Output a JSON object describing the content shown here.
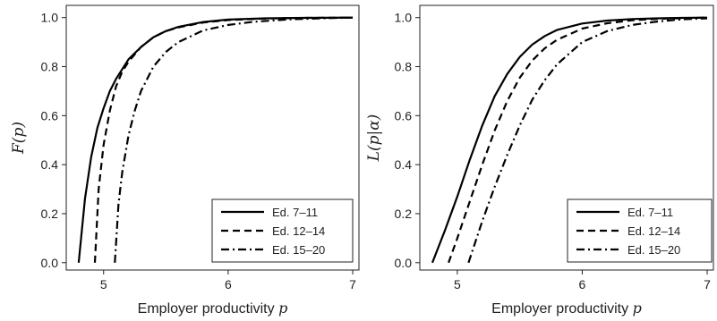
{
  "chart_data": [
    {
      "type": "line",
      "ylabel": "F(p)",
      "xlabel_text": "Employer productivity ",
      "xlabel_var": "p",
      "xlim": [
        4.7,
        7.05
      ],
      "ylim": [
        -0.03,
        1.05
      ],
      "xticks": [
        5,
        6,
        7
      ],
      "yticks": [
        0.0,
        0.2,
        0.4,
        0.6,
        0.8,
        1.0
      ],
      "xtick_labels": [
        "5",
        "6",
        "7"
      ],
      "ytick_labels": [
        "0.0",
        "0.2",
        "0.4",
        "0.6",
        "0.8",
        "1.0"
      ],
      "legend_position": "bottom-right",
      "series": [
        {
          "name": "Ed. 7–11",
          "style": "solid",
          "x": [
            4.8,
            4.85,
            4.9,
            4.95,
            5.0,
            5.05,
            5.1,
            5.2,
            5.3,
            5.4,
            5.5,
            5.6,
            5.8,
            6.0,
            6.3,
            6.6,
            7.0
          ],
          "y": [
            0.0,
            0.26,
            0.43,
            0.55,
            0.63,
            0.7,
            0.75,
            0.83,
            0.88,
            0.92,
            0.945,
            0.962,
            0.982,
            0.992,
            0.997,
            0.999,
            1.0
          ]
        },
        {
          "name": "Ed. 12–14",
          "style": "dashed",
          "x": [
            4.93,
            4.96,
            5.0,
            5.05,
            5.1,
            5.15,
            5.2,
            5.3,
            5.4,
            5.5,
            5.6,
            5.8,
            6.0,
            6.3,
            6.6,
            7.0
          ],
          "y": [
            0.0,
            0.3,
            0.48,
            0.62,
            0.72,
            0.78,
            0.82,
            0.88,
            0.92,
            0.945,
            0.96,
            0.98,
            0.99,
            0.996,
            0.999,
            1.0
          ]
        },
        {
          "name": "Ed. 15–20",
          "style": "dashdot",
          "x": [
            5.09,
            5.12,
            5.15,
            5.2,
            5.25,
            5.3,
            5.4,
            5.5,
            5.6,
            5.8,
            6.0,
            6.2,
            6.5,
            6.8,
            7.0
          ],
          "y": [
            0.0,
            0.24,
            0.37,
            0.52,
            0.62,
            0.7,
            0.8,
            0.86,
            0.9,
            0.948,
            0.97,
            0.983,
            0.993,
            0.998,
            1.0
          ]
        }
      ]
    },
    {
      "type": "line",
      "ylabel": "L(p|α)",
      "xlabel_text": "Employer productivity ",
      "xlabel_var": "p",
      "xlim": [
        4.7,
        7.05
      ],
      "ylim": [
        -0.03,
        1.05
      ],
      "xticks": [
        5,
        6,
        7
      ],
      "yticks": [
        0.0,
        0.2,
        0.4,
        0.6,
        0.8,
        1.0
      ],
      "xtick_labels": [
        "5",
        "6",
        "7"
      ],
      "ytick_labels": [
        "0.0",
        "0.2",
        "0.4",
        "0.6",
        "0.8",
        "1.0"
      ],
      "legend_position": "bottom-right",
      "series": [
        {
          "name": "Ed. 7–11",
          "style": "solid",
          "x": [
            4.8,
            4.9,
            5.0,
            5.1,
            5.2,
            5.3,
            5.4,
            5.5,
            5.6,
            5.7,
            5.8,
            6.0,
            6.2,
            6.4,
            6.6,
            6.8,
            7.0
          ],
          "y": [
            0.0,
            0.13,
            0.27,
            0.42,
            0.56,
            0.68,
            0.77,
            0.84,
            0.89,
            0.925,
            0.95,
            0.976,
            0.988,
            0.994,
            0.997,
            0.999,
            1.0
          ]
        },
        {
          "name": "Ed. 12–14",
          "style": "dashed",
          "x": [
            4.93,
            5.0,
            5.1,
            5.2,
            5.3,
            5.4,
            5.5,
            5.6,
            5.7,
            5.8,
            6.0,
            6.2,
            6.4,
            6.6,
            6.8,
            7.0
          ],
          "y": [
            0.0,
            0.1,
            0.25,
            0.4,
            0.54,
            0.66,
            0.755,
            0.825,
            0.875,
            0.91,
            0.955,
            0.977,
            0.989,
            0.995,
            0.998,
            1.0
          ]
        },
        {
          "name": "Ed. 15–20",
          "style": "dashdot",
          "x": [
            5.09,
            5.2,
            5.3,
            5.4,
            5.5,
            5.6,
            5.7,
            5.8,
            6.0,
            6.2,
            6.4,
            6.6,
            6.8,
            7.0
          ],
          "y": [
            0.0,
            0.17,
            0.31,
            0.44,
            0.56,
            0.665,
            0.745,
            0.81,
            0.9,
            0.945,
            0.97,
            0.984,
            0.993,
            0.997
          ]
        }
      ]
    }
  ]
}
